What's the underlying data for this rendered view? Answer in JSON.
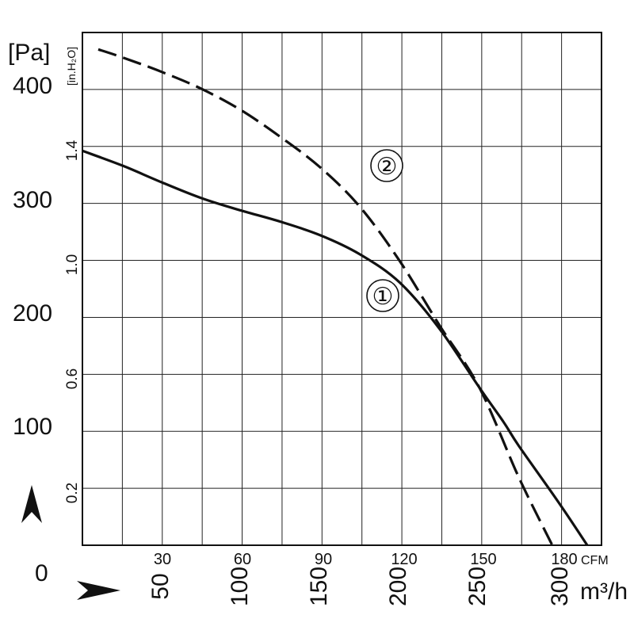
{
  "chart_data": {
    "type": "line",
    "grid": true,
    "x_axes": {
      "cfm": {
        "unit": "CFM",
        "ticks": [
          "30",
          "60",
          "90",
          "120",
          "150",
          "180"
        ]
      },
      "m3h": {
        "unit": "m³/h",
        "ticks": [
          "50",
          "100",
          "150",
          "200",
          "250",
          "300"
        ]
      }
    },
    "y_axes": {
      "pa": {
        "unit": "[Pa]",
        "ticks": [
          "0",
          "100",
          "200",
          "300",
          "400"
        ]
      },
      "inh2o": {
        "unit": "[in.H₂O]",
        "ticks": [
          "0.2",
          "0.6",
          "1.0",
          "1.4"
        ]
      }
    },
    "xlim_m3h": [
      0,
      327
    ],
    "ylim_pa": [
      0,
      455
    ],
    "series": [
      {
        "name": "①",
        "style": "solid",
        "points": [
          [
            0,
            350
          ],
          [
            25,
            337
          ],
          [
            50,
            322
          ],
          [
            75,
            308
          ],
          [
            100,
            297
          ],
          [
            125,
            287
          ],
          [
            150,
            275
          ],
          [
            175,
            258
          ],
          [
            200,
            233
          ],
          [
            225,
            192
          ],
          [
            250,
            140
          ],
          [
            265,
            110
          ],
          [
            275,
            88
          ],
          [
            300,
            38
          ],
          [
            318,
            0
          ]
        ]
      },
      {
        "name": "②",
        "style": "dashed",
        "points": [
          [
            10,
            440
          ],
          [
            25,
            433
          ],
          [
            50,
            420
          ],
          [
            75,
            405
          ],
          [
            100,
            386
          ],
          [
            125,
            362
          ],
          [
            150,
            335
          ],
          [
            175,
            300
          ],
          [
            200,
            252
          ],
          [
            225,
            195
          ],
          [
            250,
            140
          ],
          [
            275,
            60
          ],
          [
            296,
            0
          ]
        ]
      }
    ],
    "annotations": [
      "①",
      "②"
    ]
  }
}
